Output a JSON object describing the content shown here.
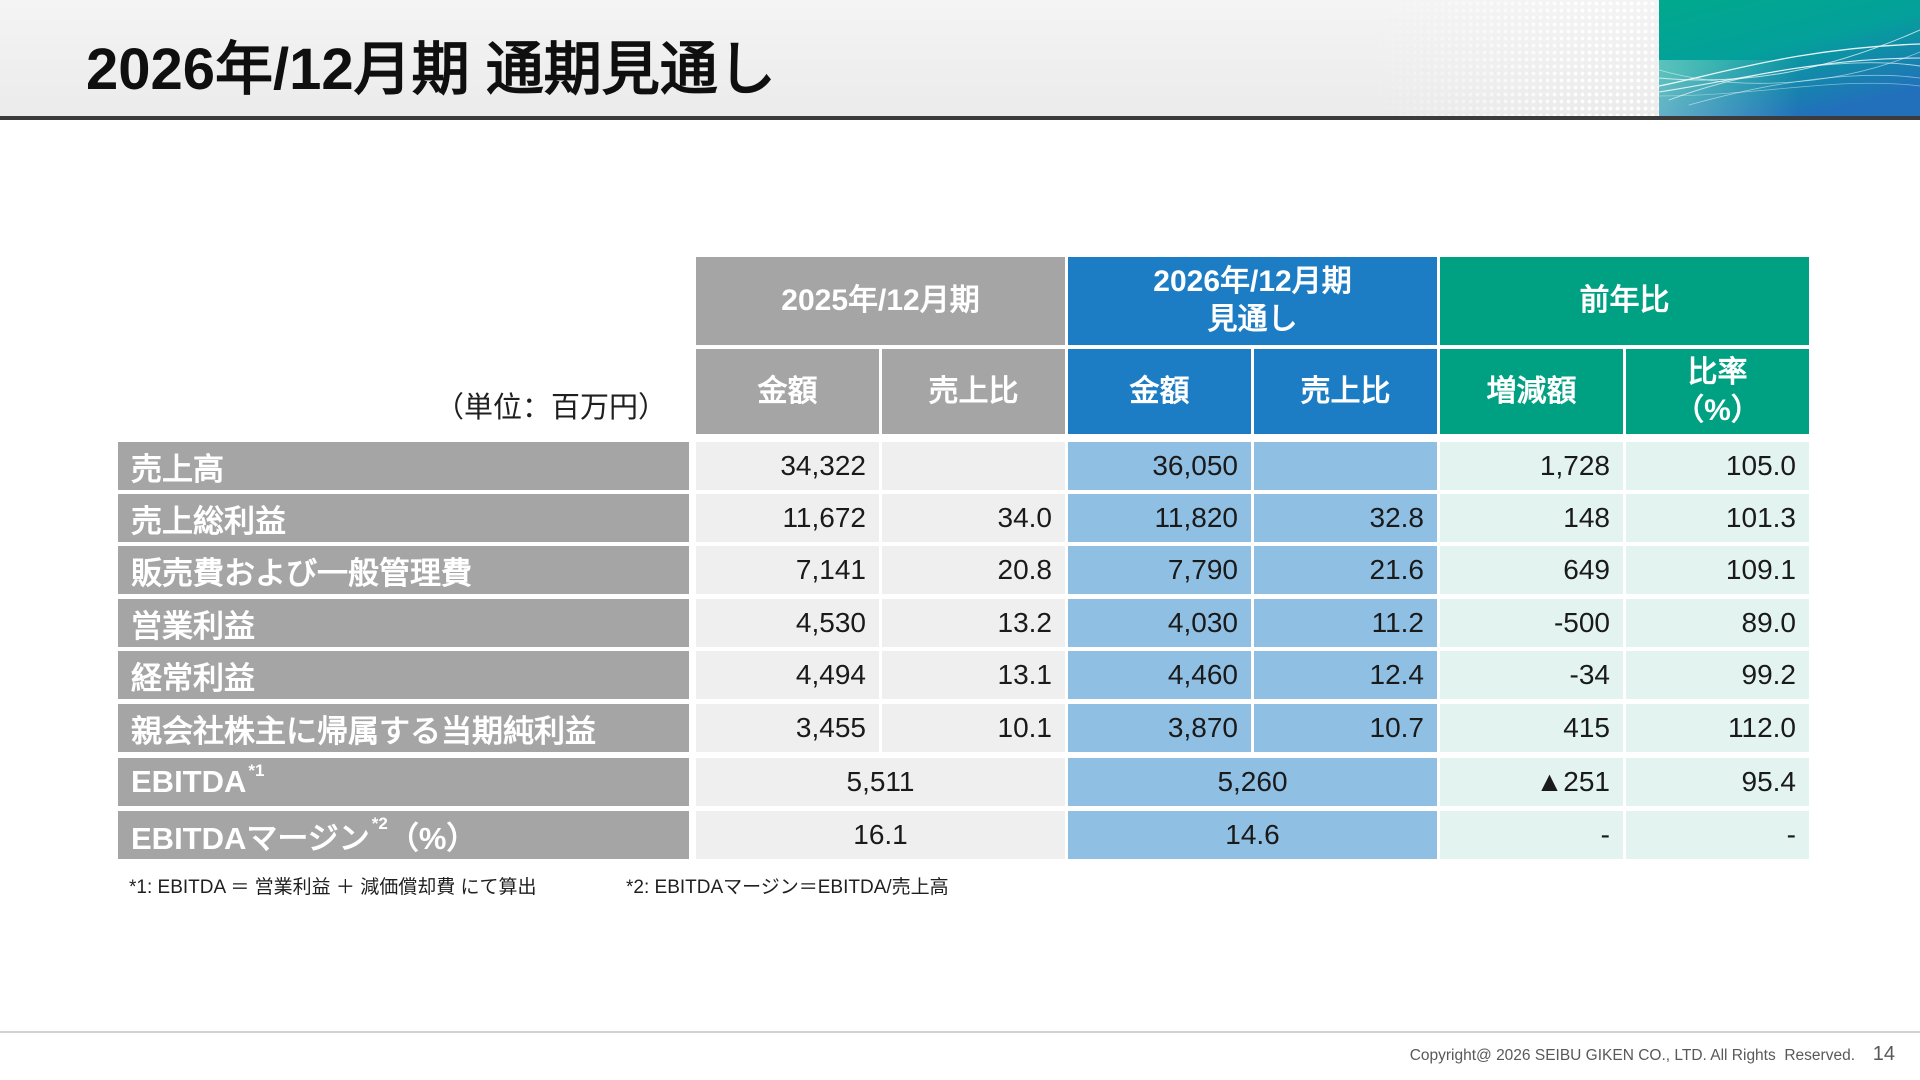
{
  "slide": {
    "title": "2026年/12月期 通期見通し",
    "copyright": "Copyright@ 2026 SEIBU GIKEN CO., LTD. All Rights  Reserved.",
    "page_number": "14"
  },
  "colors": {
    "header_gray": "#a5a5a5",
    "header_blue": "#1c7dc5",
    "header_teal": "#00a182",
    "cell_gray": "#efefef",
    "cell_blue": "#8fbfe3",
    "cell_teal": "#e3f3f0",
    "label_gray": "#a5a5a5"
  },
  "table": {
    "unit": "（単位：百万円）",
    "groups": {
      "fy2025": "2025年/12月期",
      "fy2026": [
        "2026年/12月期",
        "見通し"
      ],
      "yoy": "前年比"
    },
    "columns": {
      "fy2025_amount": "金額",
      "fy2025_ratio": "売上比",
      "fy2026_amount": "金額",
      "fy2026_ratio": "売上比",
      "yoy_change": "増減額",
      "yoy_rate": [
        "比率",
        "（%）"
      ]
    },
    "rows": [
      {
        "label": "売上高",
        "fy2025_amount": "34,322",
        "fy2026_amount": "36,050",
        "yoy_change": "1,728",
        "yoy_rate": "105.0"
      },
      {
        "label": "売上総利益",
        "fy2025_amount": "11,672",
        "fy2025_ratio": "34.0",
        "fy2026_amount": "11,820",
        "fy2026_ratio": "32.8",
        "yoy_change": "148",
        "yoy_rate": "101.3"
      },
      {
        "label": "販売費および一般管理費",
        "fy2025_amount": "7,141",
        "fy2025_ratio": "20.8",
        "fy2026_amount": "7,790",
        "fy2026_ratio": "21.6",
        "yoy_change": "649",
        "yoy_rate": "109.1"
      },
      {
        "label": "営業利益",
        "fy2025_amount": "4,530",
        "fy2025_ratio": "13.2",
        "fy2026_amount": "4,030",
        "fy2026_ratio": "11.2",
        "yoy_change": "-500",
        "yoy_rate": "89.0"
      },
      {
        "label": "経常利益",
        "fy2025_amount": "4,494",
        "fy2025_ratio": "13.1",
        "fy2026_amount": "4,460",
        "fy2026_ratio": "12.4",
        "yoy_change": "-34",
        "yoy_rate": "99.2"
      },
      {
        "label": "親会社株主に帰属する当期純利益",
        "fy2025_amount": "3,455",
        "fy2025_ratio": "10.1",
        "fy2026_amount": "3,870",
        "fy2026_ratio": "10.7",
        "yoy_change": "415",
        "yoy_rate": "112.0"
      },
      {
        "label": "EBITDA",
        "note": "*1",
        "fy2025": "5,511",
        "fy2026": "5,260",
        "yoy_change": "▲251",
        "yoy_rate": "95.4"
      },
      {
        "label": "EBITDAマージン",
        "note": "*2",
        "suffix": "（%）",
        "fy2025": "16.1",
        "fy2026": "14.6",
        "yoy_change": "-",
        "yoy_rate": "-"
      }
    ]
  },
  "footnotes": [
    "*1: EBITDA ＝ 営業利益 ＋ 減価償却費 にて算出",
    "*2: EBITDAマージン＝EBITDA/売上高"
  ]
}
